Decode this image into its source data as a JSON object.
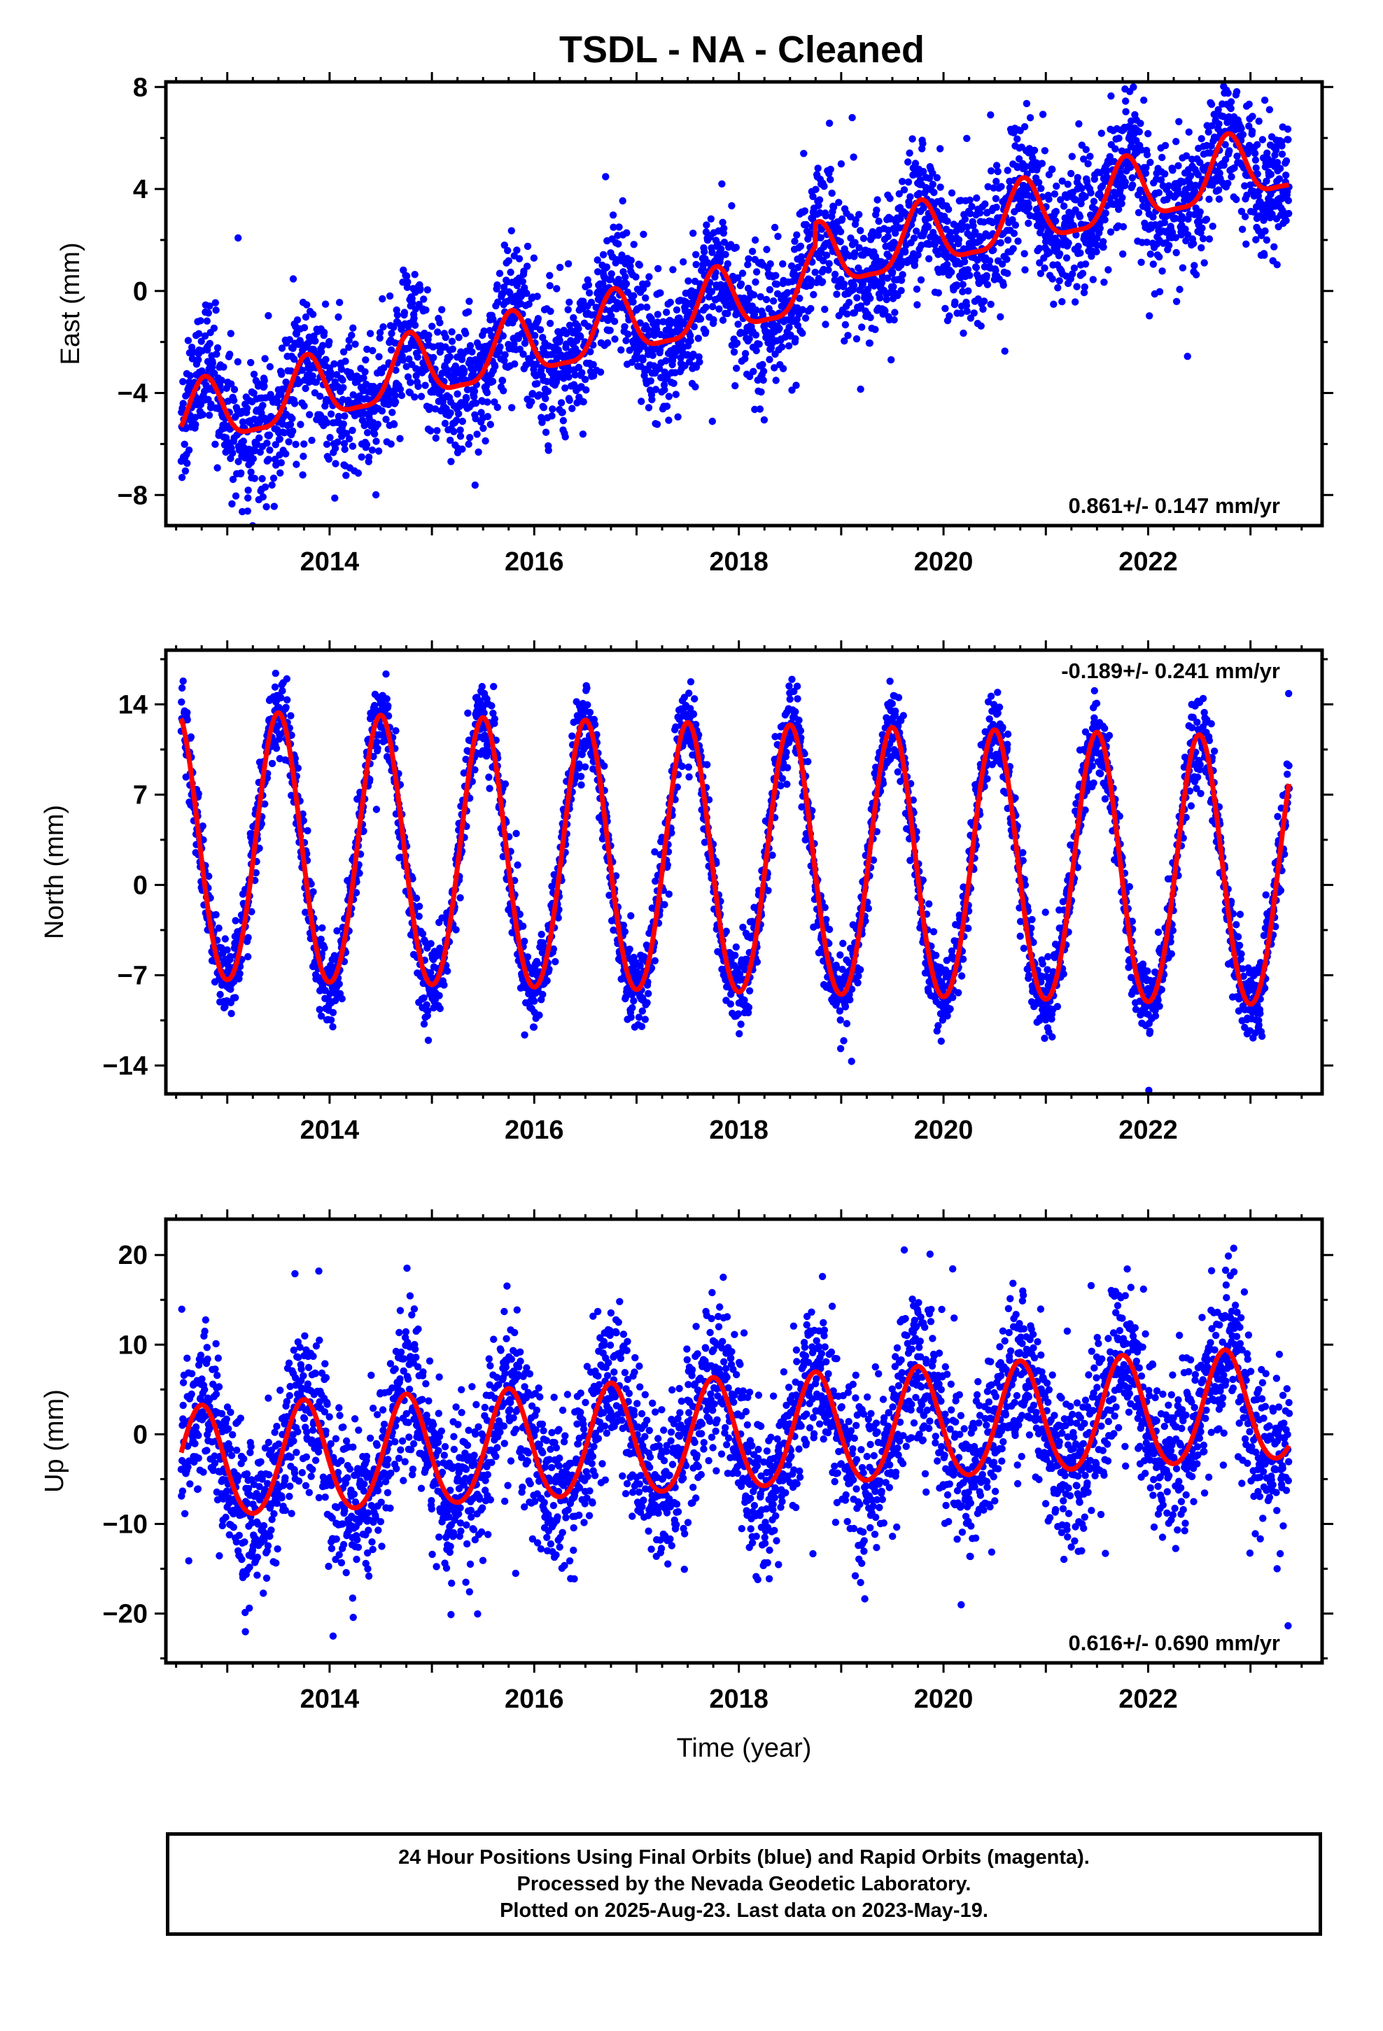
{
  "title": "TSDL  - NA - Cleaned",
  "chart_data": [
    {
      "type": "scatter",
      "panel": "east",
      "ylabel": "East (mm)",
      "xlabel": "",
      "xlim": [
        2012.4,
        2023.7
      ],
      "ylim": [
        -9.2,
        8.2
      ],
      "yticks": [
        -8,
        -4,
        0,
        4,
        8
      ],
      "ytick_labels": [
        "−8",
        "−4",
        "0",
        "4",
        "8"
      ],
      "xticks": [
        2014,
        2016,
        2018,
        2020,
        2022
      ],
      "xtick_labels": [
        "2014",
        "2016",
        "2018",
        "2020",
        "2022"
      ],
      "rate_text": "0.861+/- 0.147 mm/yr",
      "rate_position": "bottom-right",
      "series": [
        {
          "role": "observations",
          "color": "#0000ff",
          "values_summary": "daily GPS east positions, ~3800 points, scatter ~±1.5 mm about the model"
        },
        {
          "role": "model",
          "color": "#ff0000",
          "model": {
            "type": "trend-plus-seasonal",
            "t0": 2018.0,
            "intercept": -0.45,
            "slope": 0.861,
            "annual_amplitude": 1.25,
            "annual_peak_year_fraction": 0.78,
            "semiannual_amplitude": 0.35,
            "steps": [
              {
                "year": 2018.75,
                "size": 0.9
              }
            ]
          }
        }
      ]
    },
    {
      "type": "scatter",
      "panel": "north",
      "ylabel": "North (mm)",
      "xlabel": "",
      "xlim": [
        2012.4,
        2023.7
      ],
      "ylim": [
        -16.2,
        18.2
      ],
      "yticks": [
        -14,
        -7,
        0,
        7,
        14
      ],
      "ytick_labels": [
        "−14",
        "−7",
        "0",
        "7",
        "14"
      ],
      "xticks": [
        2014,
        2016,
        2018,
        2020,
        2022
      ],
      "xtick_labels": [
        "2014",
        "2016",
        "2018",
        "2020",
        "2022"
      ],
      "rate_text": "-0.189+/- 0.241 mm/yr",
      "rate_position": "top-right",
      "series": [
        {
          "role": "observations",
          "color": "#0000ff",
          "values_summary": "daily GPS north positions, ~3800 points, scatter ~±1.5 mm about the model"
        },
        {
          "role": "model",
          "color": "#ff0000",
          "model": {
            "type": "trend-plus-seasonal",
            "t0": 2018.0,
            "intercept": 1.5,
            "slope": -0.189,
            "annual_amplitude": 10.4,
            "annual_peak_year_fraction": 0.5,
            "semiannual_amplitude": 0.6,
            "steps": []
          }
        }
      ]
    },
    {
      "type": "scatter",
      "panel": "up",
      "ylabel": "Up (mm)",
      "xlabel": "Time (year)",
      "xlim": [
        2012.4,
        2023.7
      ],
      "ylim": [
        -25.5,
        24.0
      ],
      "yticks": [
        -20,
        -10,
        0,
        10,
        20
      ],
      "ytick_labels": [
        "−20",
        "−10",
        "0",
        "10",
        "20"
      ],
      "xticks": [
        2014,
        2016,
        2018,
        2020,
        2022
      ],
      "xtick_labels": [
        "2014",
        "2016",
        "2018",
        "2020",
        "2022"
      ],
      "rate_text": "0.616+/- 0.690 mm/yr",
      "rate_position": "bottom-right",
      "series": [
        {
          "role": "observations",
          "color": "#0000ff",
          "values_summary": "daily GPS vertical positions, ~3800 points, scatter ~±4.5 mm about the model"
        },
        {
          "role": "model",
          "color": "#ff0000",
          "model": {
            "type": "trend-plus-seasonal",
            "t0": 2018.0,
            "intercept": -0.2,
            "slope": 0.616,
            "annual_amplitude": 6.2,
            "annual_peak_year_fraction": 0.75,
            "semiannual_amplitude": 0.5,
            "steps": []
          }
        }
      ]
    }
  ],
  "footer": {
    "line1": "24 Hour Positions Using Final Orbits (blue) and Rapid Orbits (magenta).",
    "line2": "Processed by the Nevada Geodetic Laboratory.",
    "line3": "Plotted on 2025-Aug-23. Last data on 2023-May-19."
  }
}
